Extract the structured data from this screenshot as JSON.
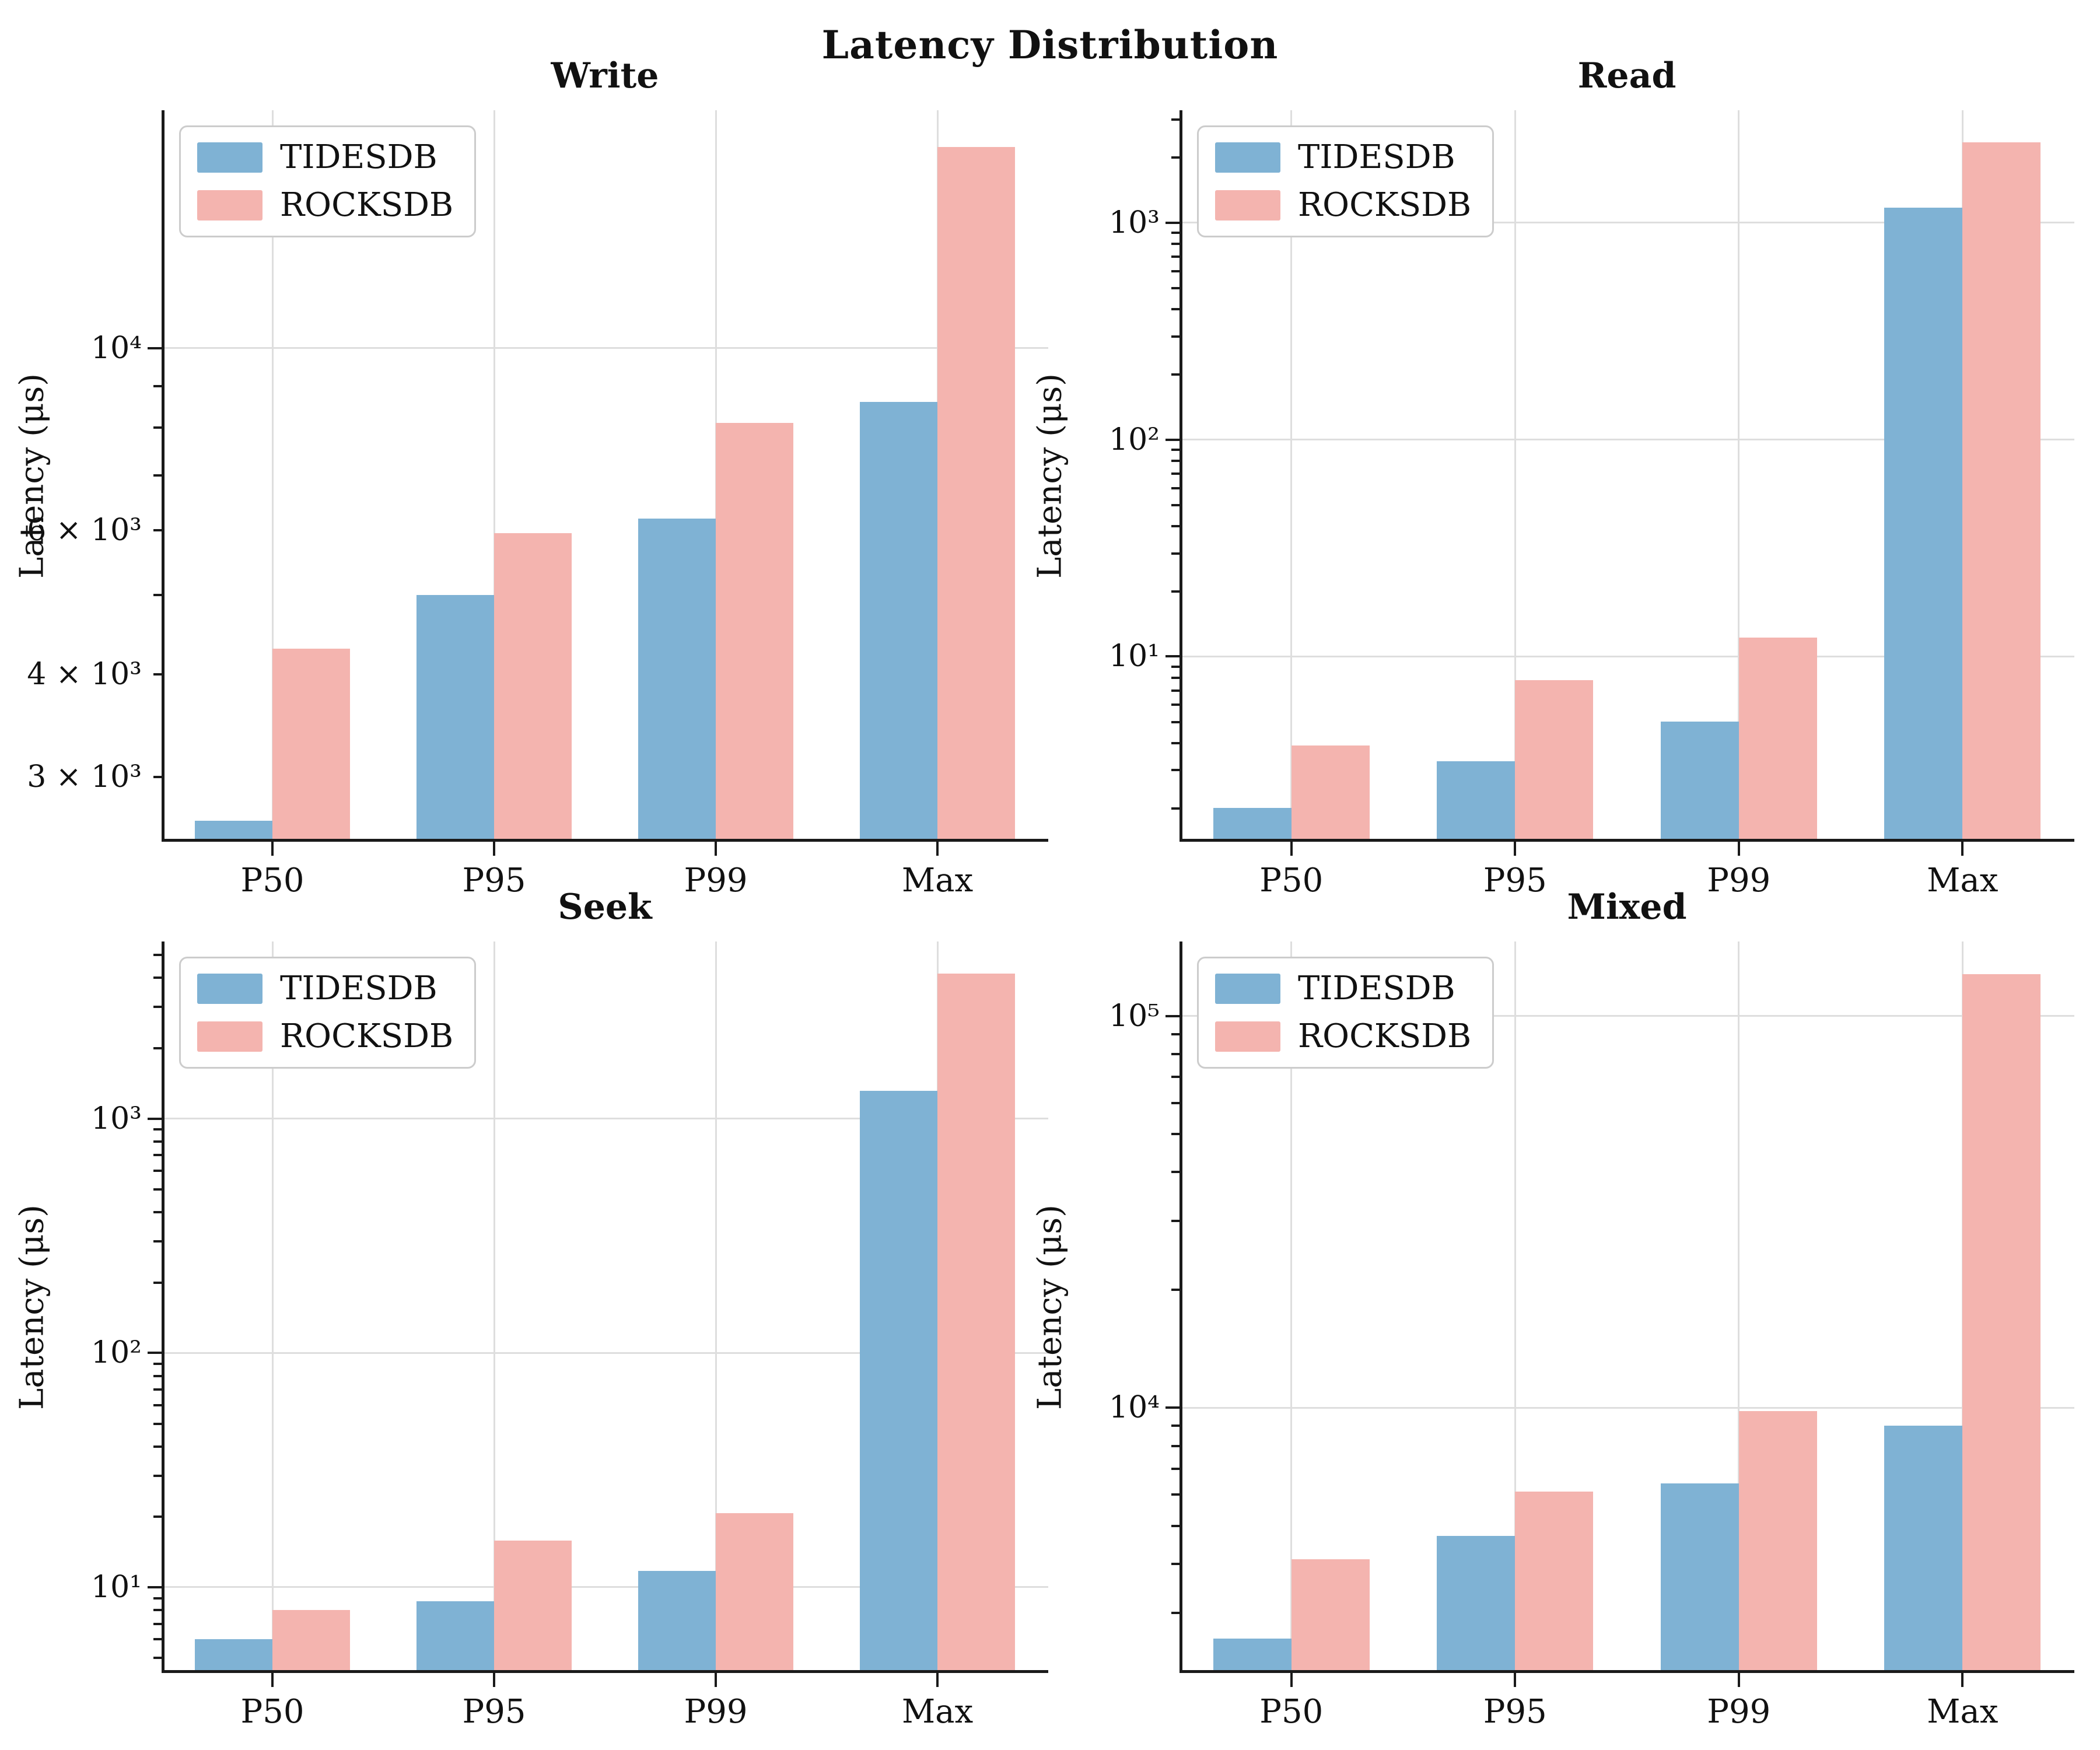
{
  "figure": {
    "suptitle": "Latency Distribution",
    "background": "#ffffff",
    "grid_color": "#dedede",
    "spine_color": "#1a1a1a",
    "tidesdb_color": "#7fb2d4",
    "rocksdb_color": "#f4b4af"
  },
  "chart_data": [
    {
      "type": "bar",
      "title": "Write",
      "ylabel": "Latency (μs)",
      "yscale": "log",
      "ylim": [
        2500,
        19500
      ],
      "grid": true,
      "legend_position": "upper-left",
      "categories": [
        "P50",
        "P95",
        "P99",
        "Max"
      ],
      "series": [
        {
          "name": "TIDESDB",
          "values": [
            2650,
            5000,
            6200,
            8600
          ]
        },
        {
          "name": "ROCKSDB",
          "values": [
            4300,
            5950,
            8100,
            17600
          ]
        }
      ],
      "yticks": [
        {
          "v": 3000,
          "label": "3 × 10³",
          "major": false
        },
        {
          "v": 4000,
          "label": "4 × 10³",
          "major": false
        },
        {
          "v": 6000,
          "label": "6 × 10³",
          "major": false
        },
        {
          "v": 10000,
          "label": "10⁴",
          "major": true
        }
      ]
    },
    {
      "type": "bar",
      "title": "Read",
      "ylabel": "Latency (μs)",
      "yscale": "log",
      "ylim": [
        1.4,
        3300
      ],
      "grid": true,
      "legend_position": "upper-left",
      "categories": [
        "P50",
        "P95",
        "P99",
        "Max"
      ],
      "series": [
        {
          "name": "TIDESDB",
          "values": [
            2.0,
            3.3,
            5.0,
            1170
          ]
        },
        {
          "name": "ROCKSDB",
          "values": [
            3.9,
            7.8,
            12.2,
            2350
          ]
        }
      ],
      "yticks": [
        {
          "v": 10,
          "label": "10¹",
          "major": true
        },
        {
          "v": 100,
          "label": "10²",
          "major": true
        },
        {
          "v": 1000,
          "label": "10³",
          "major": true
        }
      ]
    },
    {
      "type": "bar",
      "title": "Seek",
      "ylabel": "Latency (μs)",
      "yscale": "log",
      "ylim": [
        4.3,
        5700
      ],
      "grid": true,
      "legend_position": "upper-left",
      "categories": [
        "P50",
        "P95",
        "P99",
        "Max"
      ],
      "series": [
        {
          "name": "TIDESDB",
          "values": [
            6.0,
            8.7,
            11.7,
            1310
          ]
        },
        {
          "name": "ROCKSDB",
          "values": [
            8.0,
            15.8,
            20.7,
            4150
          ]
        }
      ],
      "yticks": [
        {
          "v": 10,
          "label": "10¹",
          "major": true
        },
        {
          "v": 100,
          "label": "10²",
          "major": true
        },
        {
          "v": 1000,
          "label": "10³",
          "major": true
        }
      ]
    },
    {
      "type": "bar",
      "title": "Mixed",
      "ylabel": "Latency (μs)",
      "yscale": "log",
      "ylim": [
        2100,
        155000
      ],
      "grid": true,
      "legend_position": "upper-left",
      "categories": [
        "P50",
        "P95",
        "P99",
        "Max"
      ],
      "series": [
        {
          "name": "TIDESDB",
          "values": [
            2570,
            4700,
            6400,
            9000
          ]
        },
        {
          "name": "ROCKSDB",
          "values": [
            4100,
            6100,
            9800,
            128000
          ]
        }
      ],
      "yticks": [
        {
          "v": 10000,
          "label": "10⁴",
          "major": true
        },
        {
          "v": 100000,
          "label": "10⁵",
          "major": true
        }
      ]
    }
  ]
}
